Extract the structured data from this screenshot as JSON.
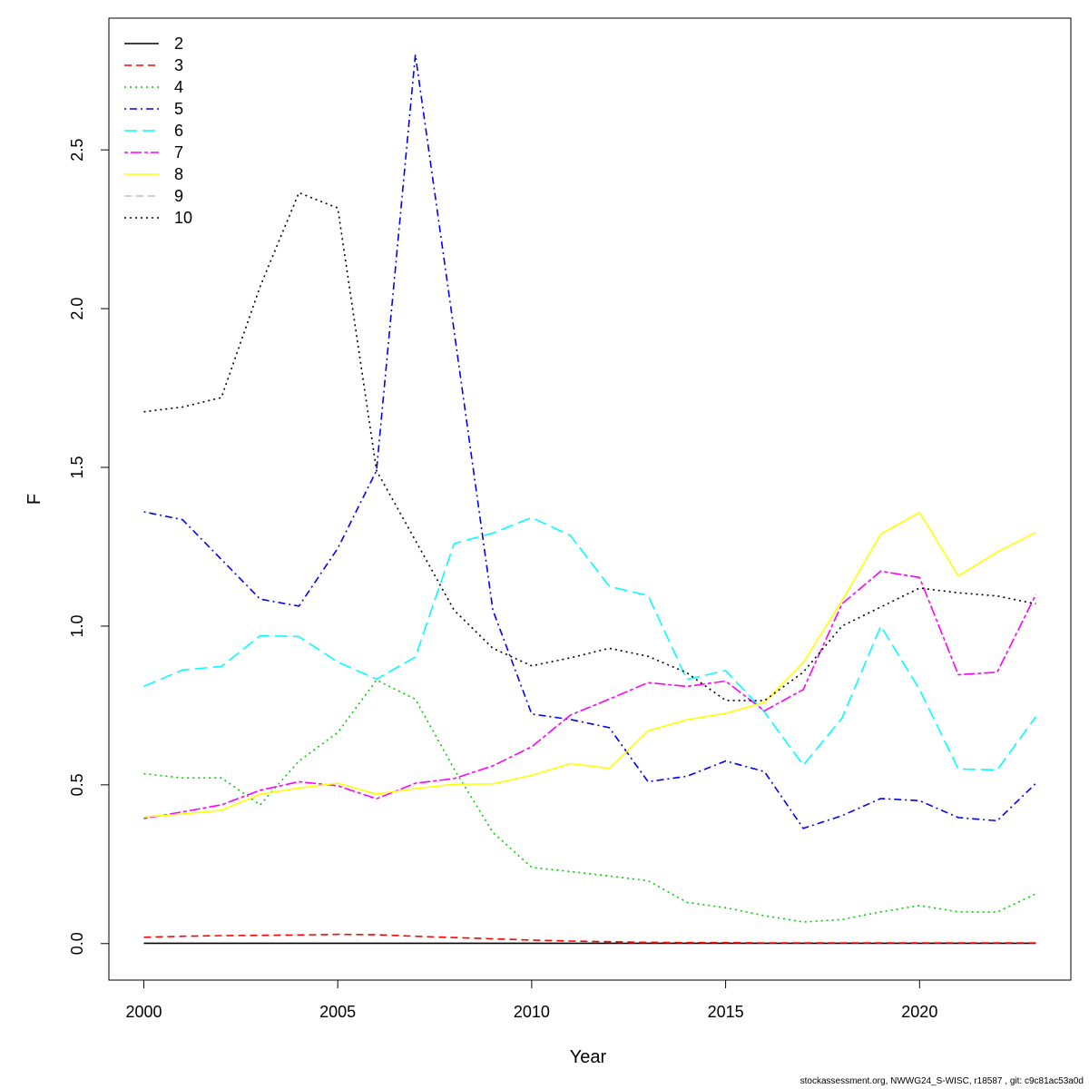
{
  "chart_data": {
    "type": "line",
    "xlabel": "Year",
    "ylabel": "F",
    "xlim": [
      1999.1,
      2023.9
    ],
    "ylim": [
      -0.115,
      2.915
    ],
    "x_ticks": [
      "2000",
      "2005",
      "2010",
      "2015",
      "2020"
    ],
    "y_ticks": [
      "0.0",
      "0.5",
      "1.0",
      "1.5",
      "2.0",
      "2.5"
    ],
    "x": [
      2000,
      2001,
      2002,
      2003,
      2004,
      2005,
      2006,
      2007,
      2008,
      2009,
      2010,
      2011,
      2012,
      2013,
      2014,
      2015,
      2016,
      2017,
      2018,
      2019,
      2020,
      2021,
      2022,
      2023
    ],
    "legend_position": "top-left",
    "series": [
      {
        "name": "2",
        "color": "#000000",
        "dash": "solid",
        "values": [
          0.001,
          0.001,
          0.001,
          0.001,
          0.001,
          0.001,
          0.001,
          0.001,
          0.001,
          0.001,
          0.001,
          0.001,
          0.001,
          0.001,
          0.001,
          0.001,
          0.001,
          0.001,
          0.001,
          0.001,
          0.001,
          0.001,
          0.001,
          0.001
        ]
      },
      {
        "name": "3",
        "color": "#ff0000",
        "dash": "dashed",
        "values": [
          0.02,
          0.023,
          0.025,
          0.026,
          0.027,
          0.029,
          0.028,
          0.023,
          0.019,
          0.015,
          0.011,
          0.008,
          0.006,
          0.004,
          0.003,
          0.003,
          0.002,
          0.002,
          0.002,
          0.002,
          0.002,
          0.002,
          0.002,
          0.002
        ]
      },
      {
        "name": "4",
        "color": "#00cd00",
        "dash": "dotted",
        "values": [
          0.535,
          0.522,
          0.522,
          0.437,
          0.575,
          0.665,
          0.83,
          0.77,
          0.55,
          0.35,
          0.24,
          0.227,
          0.213,
          0.198,
          0.13,
          0.113,
          0.088,
          0.068,
          0.076,
          0.1,
          0.12,
          0.1,
          0.099,
          0.157
        ]
      },
      {
        "name": "5",
        "color": "#0000ff",
        "dash": "dotdash",
        "values": [
          1.36,
          1.335,
          1.21,
          1.085,
          1.063,
          1.245,
          1.49,
          2.8,
          1.93,
          1.05,
          0.723,
          0.706,
          0.68,
          0.51,
          0.527,
          0.575,
          0.542,
          0.363,
          0.403,
          0.457,
          0.45,
          0.397,
          0.387,
          0.505
        ]
      },
      {
        "name": "6",
        "color": "#00ffff",
        "dash": "longdash",
        "values": [
          0.81,
          0.862,
          0.873,
          0.97,
          0.967,
          0.887,
          0.833,
          0.903,
          1.26,
          1.293,
          1.342,
          1.285,
          1.125,
          1.096,
          0.832,
          0.86,
          0.73,
          0.562,
          0.71,
          1.0,
          0.8,
          0.55,
          0.547,
          0.715
        ]
      },
      {
        "name": "7",
        "color": "#ff00ff",
        "dash": "twodash",
        "values": [
          0.394,
          0.415,
          0.437,
          0.483,
          0.51,
          0.497,
          0.456,
          0.505,
          0.52,
          0.56,
          0.62,
          0.72,
          0.77,
          0.822,
          0.81,
          0.827,
          0.733,
          0.8,
          1.07,
          1.173,
          1.153,
          0.847,
          0.855,
          1.1
        ]
      },
      {
        "name": "8",
        "color": "#ffff00",
        "dash": "solid",
        "values": [
          0.399,
          0.408,
          0.42,
          0.47,
          0.49,
          0.505,
          0.471,
          0.488,
          0.502,
          0.503,
          0.53,
          0.567,
          0.552,
          0.67,
          0.705,
          0.725,
          0.76,
          0.885,
          1.08,
          1.29,
          1.358,
          1.158,
          1.233,
          1.295
        ]
      },
      {
        "name": "9",
        "color": "#bebebe",
        "dash": "dashed",
        "values": [
          null,
          null,
          null,
          null,
          null,
          null,
          null,
          null,
          null,
          null,
          null,
          null,
          null,
          null,
          null,
          null,
          null,
          null,
          null,
          null,
          null,
          null,
          null,
          null
        ]
      },
      {
        "name": "10",
        "color": "#000000",
        "dash": "dotted",
        "values": [
          1.675,
          1.69,
          1.72,
          2.07,
          2.365,
          2.317,
          1.49,
          1.27,
          1.05,
          0.93,
          0.875,
          0.9,
          0.93,
          0.905,
          0.853,
          0.766,
          0.765,
          0.855,
          1.0,
          1.06,
          1.12,
          1.105,
          1.095,
          1.07
        ]
      }
    ]
  },
  "footer": "stockassessment.org, NWWG24_S-WISC, r18587 , git: c9c81ac53a0d"
}
